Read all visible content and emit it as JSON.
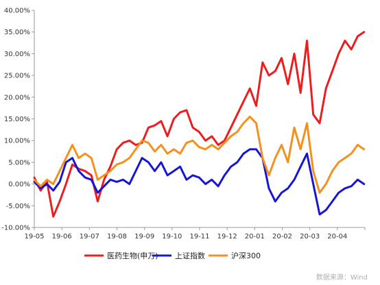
{
  "chart_data": {
    "type": "line",
    "title": "",
    "xlabel": "",
    "ylabel": "",
    "ylim": [
      -10,
      40
    ],
    "yticks": [
      -10,
      -5,
      0,
      5,
      10,
      15,
      20,
      25,
      30,
      35,
      40
    ],
    "ytick_labels": [
      "-10.00%",
      "-5.00%",
      "0.00%",
      "5.00%",
      "10.00%",
      "15.00%",
      "20.00%",
      "25.00%",
      "30.00%",
      "35.00%",
      "40.00%"
    ],
    "x_start": "2019-05",
    "x_end": "2020-04",
    "xtick_labels": [
      "19-05",
      "19-06",
      "19-07",
      "19-08",
      "19-09",
      "19-10",
      "19-11",
      "19-12",
      "20-01",
      "20-02",
      "20-03",
      "20-04"
    ],
    "grid": false,
    "legend_position": "bottom",
    "source": "数据来源：Wind",
    "series": [
      {
        "name": "医药生物(申万)",
        "color": "#ee1c1c",
        "x": [
          "2019-05-01",
          "2019-05-08",
          "2019-05-15",
          "2019-05-22",
          "2019-05-29",
          "2019-06-05",
          "2019-06-12",
          "2019-06-19",
          "2019-06-26",
          "2019-07-03",
          "2019-07-10",
          "2019-07-17",
          "2019-07-24",
          "2019-07-31",
          "2019-08-07",
          "2019-08-14",
          "2019-08-21",
          "2019-08-28",
          "2019-09-04",
          "2019-09-11",
          "2019-09-18",
          "2019-09-25",
          "2019-10-02",
          "2019-10-09",
          "2019-10-16",
          "2019-10-23",
          "2019-10-30",
          "2019-11-06",
          "2019-11-13",
          "2019-11-20",
          "2019-11-27",
          "2019-12-04",
          "2019-12-11",
          "2019-12-18",
          "2019-12-25",
          "2020-01-01",
          "2020-01-08",
          "2020-01-15",
          "2020-01-22",
          "2020-01-29",
          "2020-02-05",
          "2020-02-12",
          "2020-02-19",
          "2020-02-26",
          "2020-03-04",
          "2020-03-11",
          "2020-03-18",
          "2020-03-25",
          "2020-04-01",
          "2020-04-08",
          "2020-04-15",
          "2020-04-22",
          "2020-04-29"
        ],
        "values": [
          1.5,
          -1.5,
          0.5,
          -7.5,
          -4,
          0,
          4.5,
          3.5,
          3,
          2,
          -4,
          1,
          4,
          8,
          9.5,
          10,
          9,
          9.5,
          13,
          13.5,
          14.5,
          11,
          15,
          16.5,
          17,
          13,
          12,
          10,
          11,
          9,
          10,
          13,
          16,
          19,
          22,
          18,
          28,
          25,
          26,
          29,
          23,
          30,
          21,
          33,
          16,
          14,
          22,
          26,
          30,
          33,
          31,
          34,
          35
        ]
      },
      {
        "name": "上证指数",
        "color": "#1515d8",
        "x": [
          "2019-05-01",
          "2019-05-08",
          "2019-05-15",
          "2019-05-22",
          "2019-05-29",
          "2019-06-05",
          "2019-06-12",
          "2019-06-19",
          "2019-06-26",
          "2019-07-03",
          "2019-07-10",
          "2019-07-17",
          "2019-07-24",
          "2019-07-31",
          "2019-08-07",
          "2019-08-14",
          "2019-08-21",
          "2019-08-28",
          "2019-09-04",
          "2019-09-11",
          "2019-09-18",
          "2019-09-25",
          "2019-10-02",
          "2019-10-09",
          "2019-10-16",
          "2019-10-23",
          "2019-10-30",
          "2019-11-06",
          "2019-11-13",
          "2019-11-20",
          "2019-11-27",
          "2019-12-04",
          "2019-12-11",
          "2019-12-18",
          "2019-12-25",
          "2020-01-01",
          "2020-01-08",
          "2020-01-15",
          "2020-01-22",
          "2020-01-29",
          "2020-02-05",
          "2020-02-12",
          "2020-02-19",
          "2020-02-26",
          "2020-03-04",
          "2020-03-11",
          "2020-03-18",
          "2020-03-25",
          "2020-04-01",
          "2020-04-08",
          "2020-04-15",
          "2020-04-22",
          "2020-04-29"
        ],
        "values": [
          0.5,
          -1,
          0,
          -1.5,
          0.5,
          5,
          6,
          3,
          1.5,
          1,
          -2,
          -0.5,
          1,
          0.5,
          1,
          0,
          3,
          6,
          5,
          3,
          5,
          2,
          3,
          4,
          1,
          2,
          1.5,
          0,
          1,
          -0.5,
          2,
          4,
          5,
          7,
          8,
          8,
          6,
          -1,
          -4,
          -2,
          -1,
          1,
          4,
          7,
          0,
          -7,
          -6,
          -4,
          -2,
          -1,
          -0.5,
          1,
          0
        ]
      },
      {
        "name": "沪深300",
        "color": "#f5901e",
        "x": [
          "2019-05-01",
          "2019-05-08",
          "2019-05-15",
          "2019-05-22",
          "2019-05-29",
          "2019-06-05",
          "2019-06-12",
          "2019-06-19",
          "2019-06-26",
          "2019-07-03",
          "2019-07-10",
          "2019-07-17",
          "2019-07-24",
          "2019-07-31",
          "2019-08-07",
          "2019-08-14",
          "2019-08-21",
          "2019-08-28",
          "2019-09-04",
          "2019-09-11",
          "2019-09-18",
          "2019-09-25",
          "2019-10-02",
          "2019-10-09",
          "2019-10-16",
          "2019-10-23",
          "2019-10-30",
          "2019-11-06",
          "2019-11-13",
          "2019-11-20",
          "2019-11-27",
          "2019-12-04",
          "2019-12-11",
          "2019-12-18",
          "2019-12-25",
          "2020-01-01",
          "2020-01-08",
          "2020-01-15",
          "2020-01-22",
          "2020-01-29",
          "2020-02-05",
          "2020-02-12",
          "2020-02-19",
          "2020-02-26",
          "2020-03-04",
          "2020-03-11",
          "2020-03-18",
          "2020-03-25",
          "2020-04-01",
          "2020-04-08",
          "2020-04-15",
          "2020-04-22",
          "2020-04-29"
        ],
        "values": [
          1,
          -0.5,
          1,
          0,
          3,
          6,
          9,
          6,
          7,
          6,
          1,
          2,
          3,
          4.5,
          5,
          6,
          8,
          10,
          9.5,
          7.5,
          9,
          7,
          8,
          7,
          9.5,
          10,
          8.5,
          8,
          9,
          8,
          9.5,
          11,
          12,
          14,
          15.5,
          14,
          6,
          2,
          6,
          9,
          5,
          13,
          8,
          14,
          3,
          -2,
          0,
          3,
          5,
          6,
          7,
          9,
          8
        ]
      }
    ]
  }
}
